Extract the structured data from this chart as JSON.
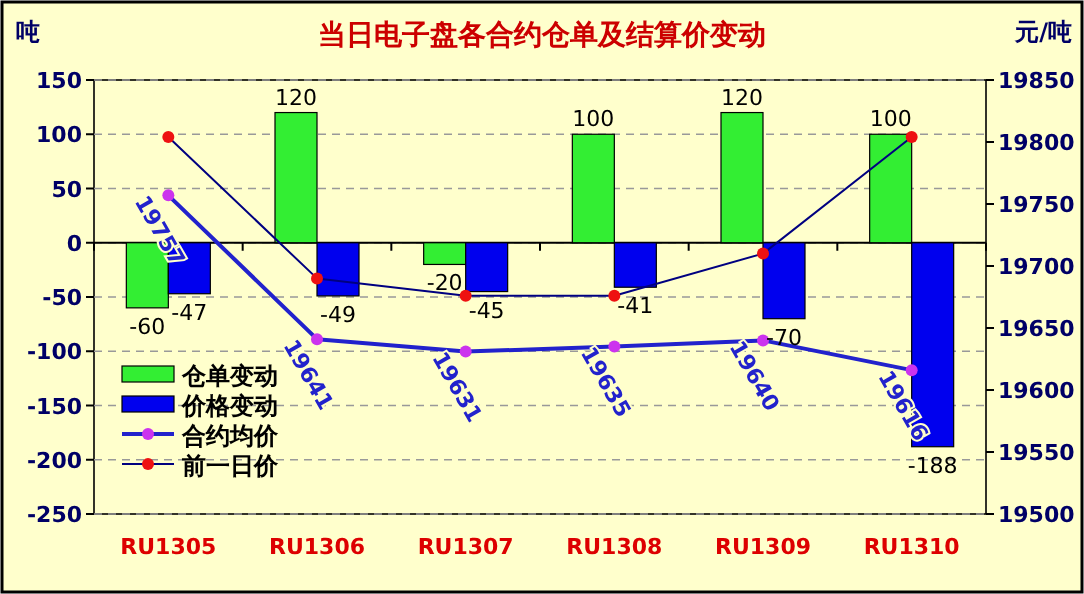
{
  "chart_data": {
    "type": "bar",
    "title": "当日电子盘各合约仓单及结算价变动",
    "ylabel": "吨",
    "y2label": "元/吨",
    "categories": [
      "RU1305",
      "RU1306",
      "RU1307",
      "RU1308",
      "RU1309",
      "RU1310"
    ],
    "series": [
      {
        "name": "仓单变动",
        "color": "#33ee33",
        "values": [
          -60,
          120,
          -20,
          100,
          120,
          100
        ],
        "value_labels": [
          "-60",
          "120",
          "-20",
          "100",
          "120",
          "100"
        ]
      },
      {
        "name": "价格变动",
        "color": "#0000ee",
        "values": [
          -47,
          -49,
          -45,
          -41,
          -70,
          -188
        ],
        "value_labels": [
          "-47",
          "-49",
          "-45",
          "-41",
          "-70",
          "-188"
        ]
      },
      {
        "name": "合约均价",
        "type": "line",
        "axis": "y2",
        "color": "#2222cc",
        "marker": "circle",
        "values": [
          19757,
          19641,
          19631,
          19635,
          19640,
          19616
        ],
        "value_labels": [
          "19757",
          "19641",
          "19631",
          "19635",
          "19640",
          "19616"
        ]
      },
      {
        "name": "前一日价",
        "type": "line",
        "axis": "y2",
        "color": "#000080",
        "marker": "circle",
        "values": [
          19804,
          19690,
          19676,
          19676,
          19710,
          19804
        ]
      }
    ],
    "ylim": [
      -250,
      150
    ],
    "yticks": [
      -250,
      -200,
      -150,
      -100,
      -50,
      0,
      50,
      100,
      150
    ],
    "y2lim": [
      19500,
      19850
    ],
    "y2ticks": [
      19500,
      19550,
      19600,
      19650,
      19700,
      19750,
      19800,
      19850
    ],
    "grid": "y",
    "legend": "bottom left"
  }
}
